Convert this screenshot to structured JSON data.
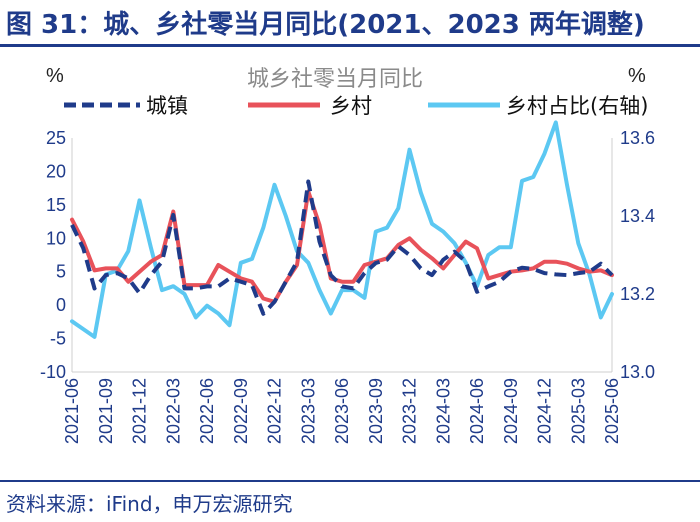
{
  "header": {
    "figure_title": "图 31：城、乡社零当月同比(2021、2023 两年调整)"
  },
  "footer": {
    "source": "资料来源：iFind，申万宏源研究"
  },
  "chart_data": {
    "type": "line",
    "title": "城乡社零当月同比",
    "left_unit": "%",
    "right_unit": "%",
    "ylim_left": [
      -10,
      25
    ],
    "yticks_left": [
      -10,
      -5,
      0,
      5,
      10,
      15,
      20,
      25
    ],
    "ylim_right": [
      13.0,
      13.6
    ],
    "yticks_right": [
      "13.0",
      "13.2",
      "13.4",
      "13.6"
    ],
    "x_tick_labels": [
      "2021-06",
      "2021-09",
      "2021-12",
      "2022-03",
      "2022-06",
      "2022-09",
      "2022-12",
      "2023-03",
      "2023-06",
      "2023-09",
      "2023-12",
      "2024-03",
      "2024-06",
      "2024-09",
      "2024-12",
      "2025-03",
      "2025-06"
    ],
    "x": [
      "2021-06",
      "2021-07",
      "2021-08",
      "2021-09",
      "2021-10",
      "2021-11",
      "2021-12",
      "2022-01",
      "2022-02",
      "2022-03",
      "2022-04",
      "2022-05",
      "2022-06",
      "2022-07",
      "2022-08",
      "2022-09",
      "2022-10",
      "2022-11",
      "2022-12",
      "2023-01",
      "2023-02",
      "2023-03",
      "2023-04",
      "2023-05",
      "2023-06",
      "2023-07",
      "2023-08",
      "2023-09",
      "2023-10",
      "2023-11",
      "2023-12",
      "2024-01",
      "2024-02",
      "2024-03",
      "2024-04",
      "2024-05",
      "2024-06",
      "2024-07",
      "2024-08",
      "2024-09",
      "2024-10",
      "2024-11",
      "2024-12",
      "2025-01",
      "2025-02",
      "2025-03",
      "2025-04",
      "2025-05",
      "2025-06"
    ],
    "legend": {
      "position": "top"
    },
    "series": [
      {
        "name": "城镇",
        "axis": "left",
        "color": "#1f3b8a",
        "style": "dashed",
        "values": [
          12.0,
          8.5,
          2.5,
          4.5,
          4.8,
          4.0,
          1.8,
          4.5,
          6.5,
          13.5,
          2.5,
          2.5,
          2.8,
          2.8,
          4.0,
          3.5,
          3.0,
          -1.3,
          0.5,
          3.5,
          6.5,
          18.5,
          9.5,
          4.5,
          2.8,
          2.5,
          4.8,
          6.3,
          6.8,
          8.8,
          7.5,
          5.5,
          4.5,
          6.8,
          8.0,
          6.5,
          2.0,
          2.8,
          3.5,
          5.0,
          5.6,
          5.4,
          4.8,
          4.6,
          4.5,
          4.8,
          5.0,
          6.2,
          4.5
        ]
      },
      {
        "name": "乡村",
        "axis": "left",
        "color": "#e8525a",
        "style": "solid",
        "values": [
          12.8,
          9.5,
          5.2,
          5.5,
          5.5,
          3.5,
          5.0,
          6.5,
          7.5,
          14.0,
          3.0,
          3.0,
          3.0,
          6.0,
          5.0,
          4.0,
          3.5,
          1.0,
          0.5,
          3.5,
          6.0,
          17.0,
          12.0,
          4.0,
          3.5,
          3.5,
          6.0,
          6.5,
          7.0,
          9.0,
          10.0,
          8.3,
          7.0,
          5.5,
          7.5,
          9.5,
          8.5,
          4.0,
          4.5,
          5.0,
          5.2,
          5.5,
          6.5,
          6.5,
          6.2,
          5.5,
          5.0,
          5.2,
          4.5
        ]
      },
      {
        "name": "乡村占比(右轴)",
        "axis": "right",
        "color": "#5cc8f2",
        "style": "solid",
        "values": [
          13.13,
          13.11,
          13.09,
          13.25,
          13.26,
          13.31,
          13.44,
          13.32,
          13.21,
          13.22,
          13.2,
          13.14,
          13.17,
          13.15,
          13.12,
          13.28,
          13.29,
          13.37,
          13.48,
          13.4,
          13.31,
          13.28,
          13.21,
          13.15,
          13.21,
          13.21,
          13.19,
          13.36,
          13.37,
          13.42,
          13.57,
          13.46,
          13.38,
          13.36,
          13.33,
          13.28,
          13.22,
          13.3,
          13.32,
          13.32,
          13.49,
          13.5,
          13.56,
          13.64,
          13.48,
          13.33,
          13.25,
          13.14,
          13.2
        ]
      }
    ]
  }
}
